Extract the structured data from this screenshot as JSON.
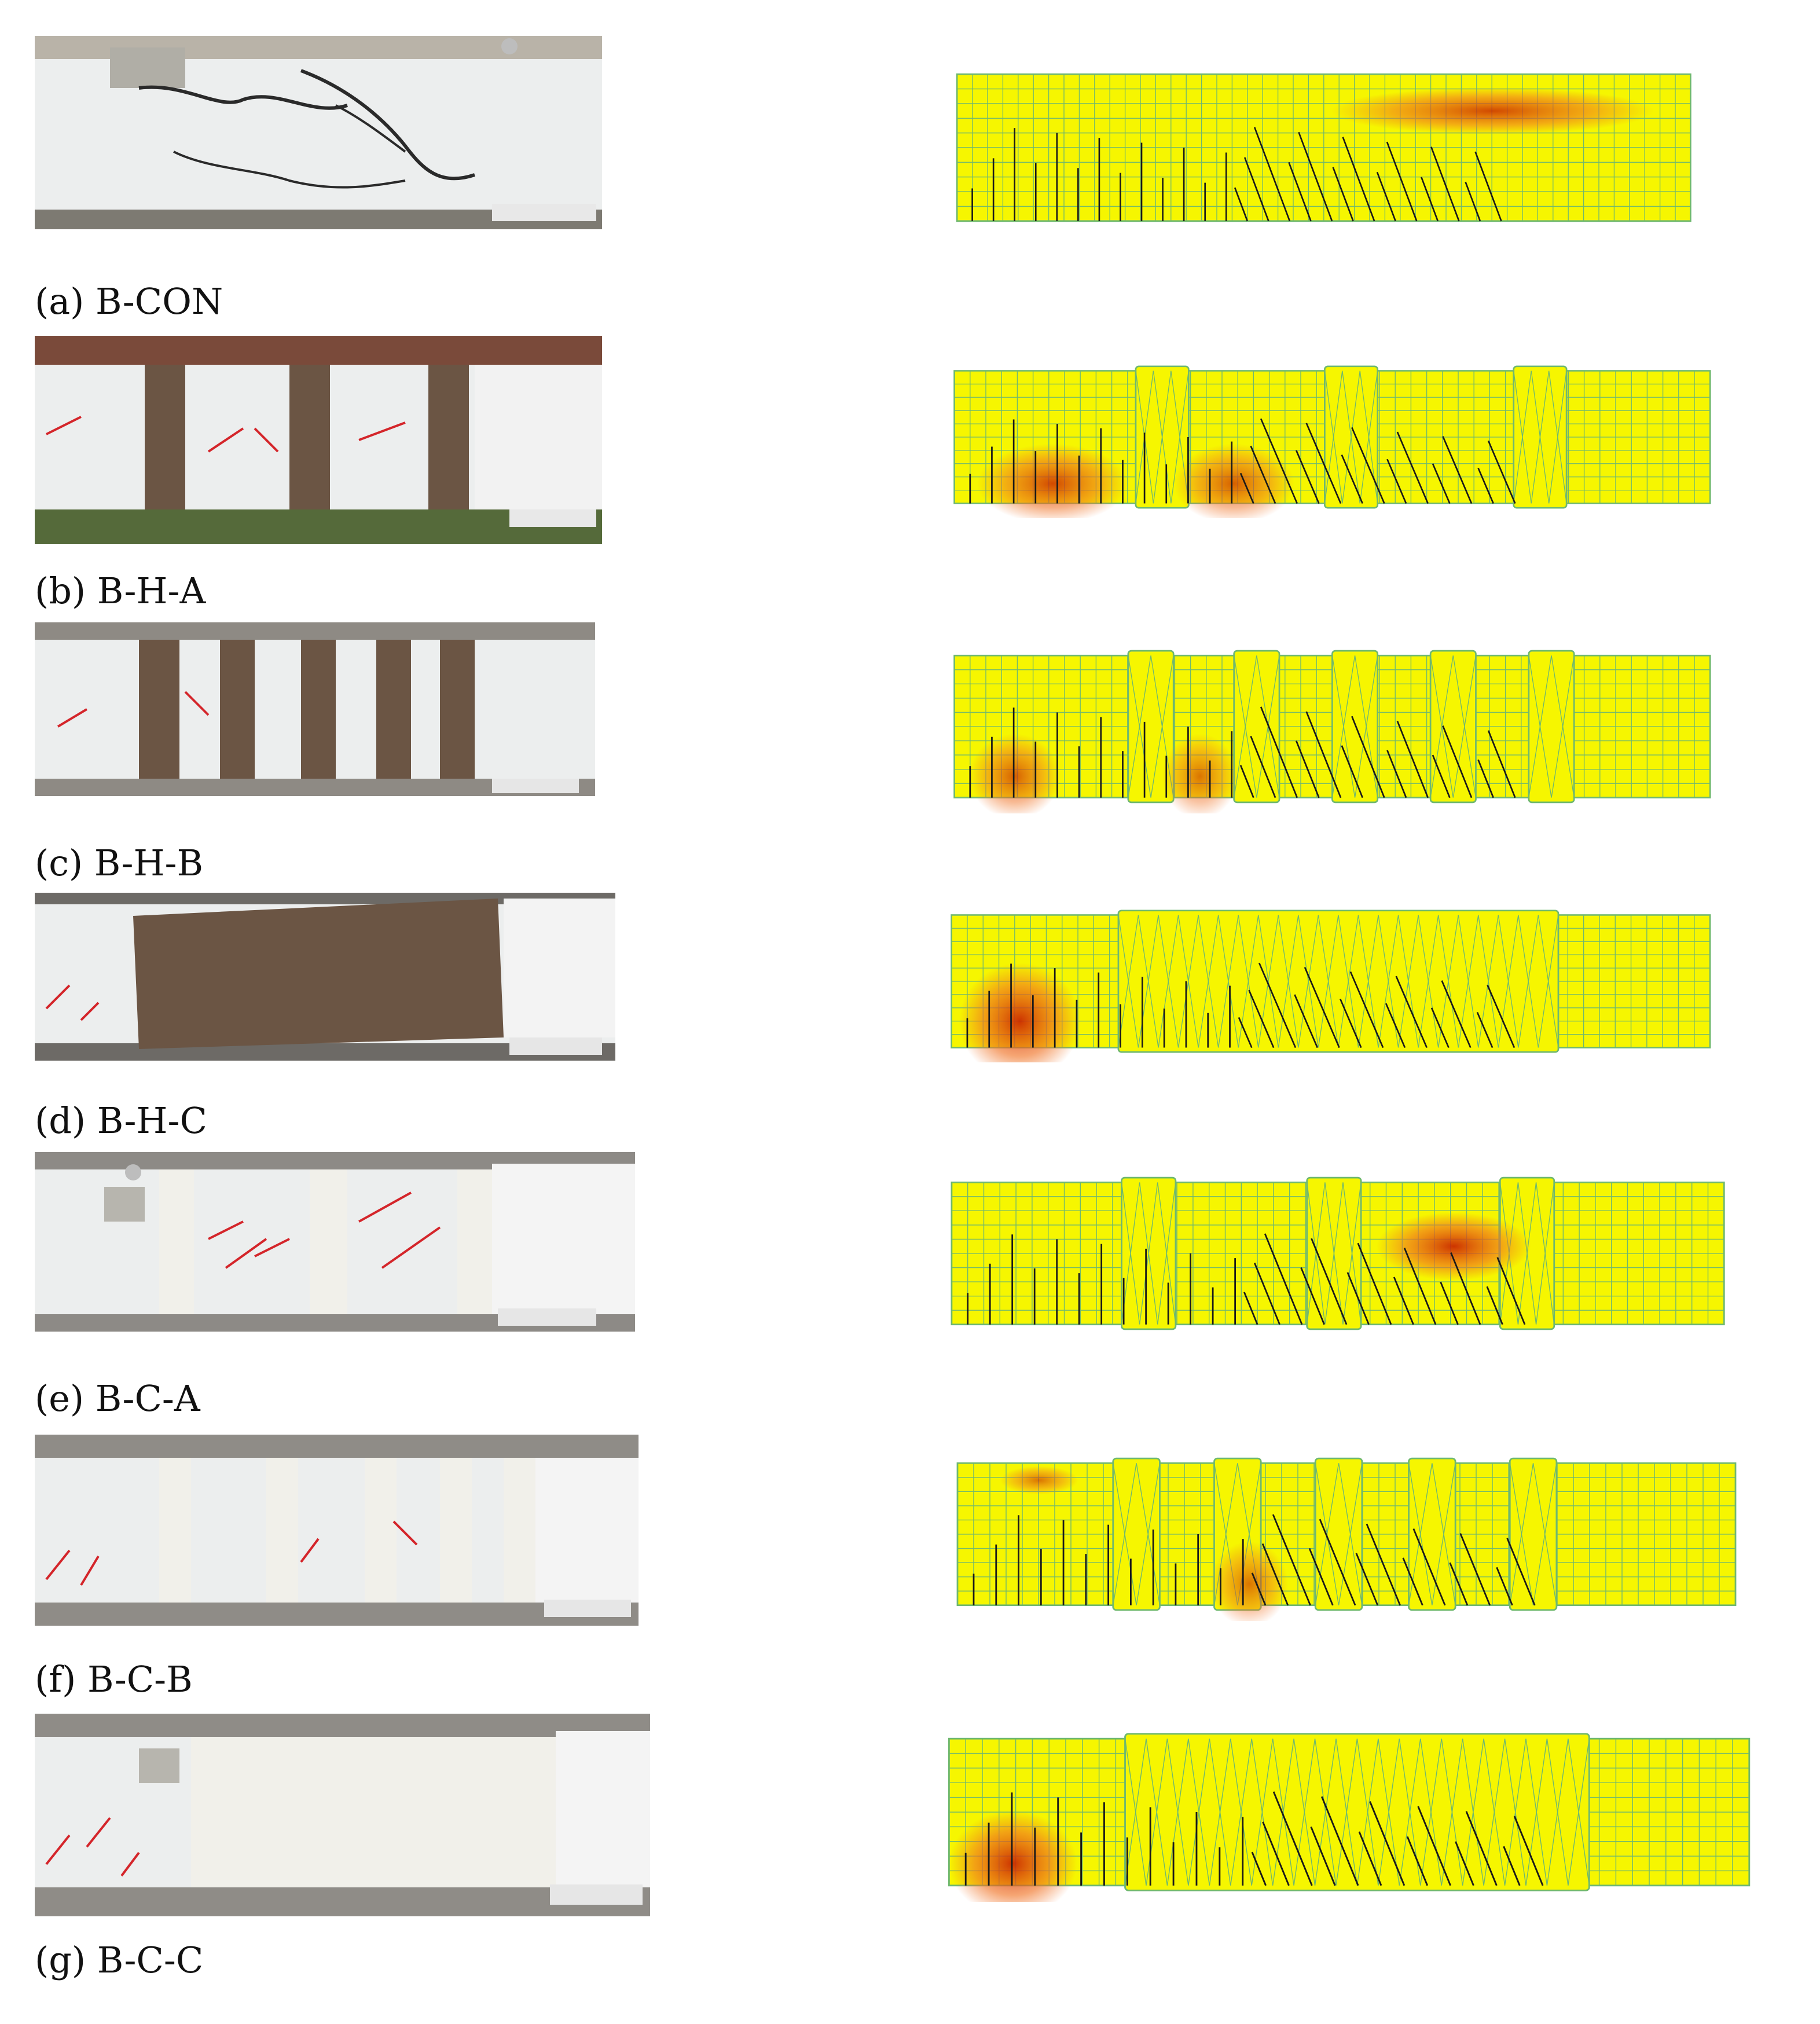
{
  "figure": {
    "panels": [
      {
        "id": "a",
        "label": "(a) B-CON",
        "strengthening": "none"
      },
      {
        "id": "b",
        "label": "(b) B-H-A",
        "strengthening": "hybrid-strips-3"
      },
      {
        "id": "c",
        "label": "(c) B-H-B",
        "strengthening": "hybrid-strips-5"
      },
      {
        "id": "d",
        "label": "(d) B-H-C",
        "strengthening": "hybrid-continuous"
      },
      {
        "id": "e",
        "label": "(e) B-C-A",
        "strengthening": "cfrp-strips-3"
      },
      {
        "id": "f",
        "label": "(f) B-C-B",
        "strengthening": "cfrp-strips-5"
      },
      {
        "id": "g",
        "label": "(g) B-C-C",
        "strengthening": "cfrp-continuous"
      }
    ],
    "colors": {
      "fem_background": "#f6f600",
      "fem_grid": "#6fb86f",
      "damage_high": "#c81e00",
      "damage_mid": "#f07020",
      "crack": "#1a1a1a",
      "photo_concrete": "#eceeee",
      "hybrid_sheet": "#6b5544",
      "cfrp_sheet": "#f1f0ea",
      "marker_red": "#d4252a"
    }
  }
}
